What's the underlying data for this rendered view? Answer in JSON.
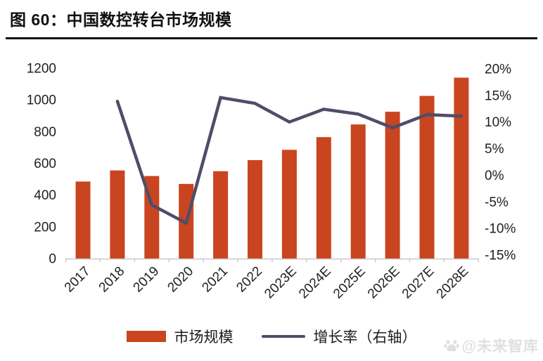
{
  "header": {
    "title": "图 60：中国数控转台市场规模"
  },
  "chart_data": {
    "type": "bar",
    "subtype": "bar+line combo",
    "title": "中国数控转台市场规模",
    "categories": [
      "2017",
      "2018",
      "2019",
      "2020",
      "2021",
      "2022",
      "2023E",
      "2024E",
      "2025E",
      "2026E",
      "2027E",
      "2028E"
    ],
    "series": [
      {
        "name": "市场规模",
        "type": "bar",
        "axis": "left",
        "color": "#C9451F",
        "values": [
          485,
          555,
          520,
          470,
          550,
          620,
          685,
          765,
          845,
          925,
          1025,
          1140
        ]
      },
      {
        "name": "增长率（右轴）",
        "type": "line",
        "axis": "right",
        "color": "#4F4D68",
        "values": [
          null,
          13.9,
          -5.6,
          -9.0,
          14.6,
          13.5,
          10.0,
          12.4,
          11.5,
          8.9,
          11.4,
          11.1
        ]
      }
    ],
    "left_axis": {
      "min": 0,
      "max": 1200,
      "step": 200,
      "tick_labels": [
        "0",
        "200",
        "400",
        "600",
        "800",
        "1000",
        "1200"
      ]
    },
    "right_axis": {
      "min": -15,
      "max": 20,
      "step": 5,
      "suffix": "%",
      "tick_labels": [
        "-15%",
        "-10%",
        "-5%",
        "0%",
        "5%",
        "10%",
        "15%",
        "20%"
      ]
    },
    "grid": false,
    "legend_position": "bottom",
    "x_label_rotation_deg": 45
  },
  "legend": {
    "items": [
      {
        "label": "市场规模",
        "swatch": "bar",
        "color": "#C9451F"
      },
      {
        "label": "增长率（右轴）",
        "swatch": "line",
        "color": "#4F4D68"
      }
    ]
  },
  "watermark": {
    "text": "@未来智库"
  },
  "colors": {
    "bar": "#C9451F",
    "line": "#4F4D68",
    "axis": "#C9C9C9",
    "text": "#1F1F1F",
    "title_rule": "#141414",
    "watermark": "#E0E0E0"
  }
}
